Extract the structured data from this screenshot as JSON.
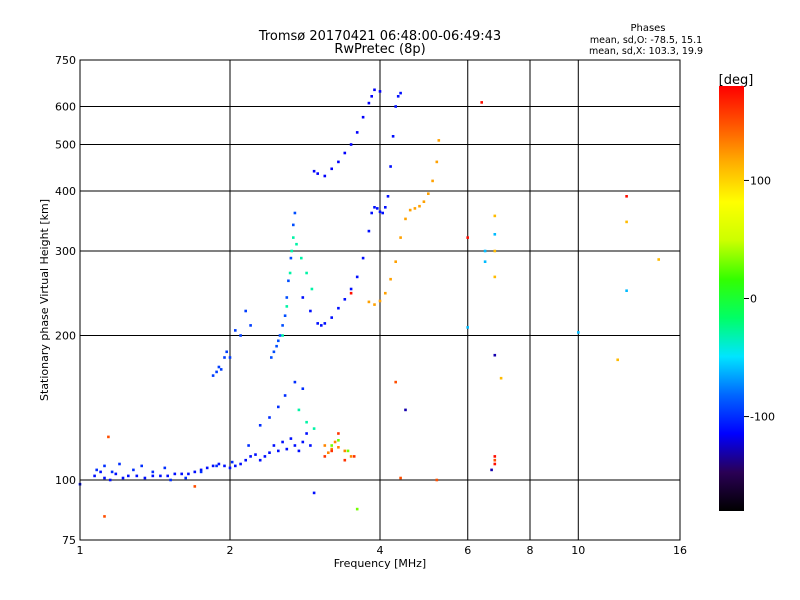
{
  "chart_data": {
    "type": "scatter",
    "title": "Tromsø 20170421 06:48:00-06:49:43",
    "subtitle": "RwPretec (8p)",
    "xlabel": "Frequency [MHz]",
    "ylabel": "Stationary phase Virtual Height [km]",
    "x_scale": "log",
    "y_scale": "log",
    "xlim": [
      1,
      16
    ],
    "ylim": [
      75,
      750
    ],
    "x_ticks": [
      1,
      2,
      4,
      6,
      8,
      10,
      16
    ],
    "y_ticks": [
      75,
      100,
      200,
      300,
      400,
      500,
      600,
      750
    ],
    "grid": true,
    "phases_box": {
      "title": "Phases",
      "line_o": "mean, sd,O: -78.5, 15.1",
      "line_x": "mean, sd,X: 103.3, 19.9"
    },
    "colorbar": {
      "label": "[deg]",
      "min": -180,
      "max": 180,
      "ticks": [
        -100,
        0,
        100
      ],
      "colors": [
        "#000000",
        "#2a0055",
        "#0000ff",
        "#0066ff",
        "#00e5ff",
        "#00ff66",
        "#33ff00",
        "#ccff00",
        "#ffff00",
        "#ffb000",
        "#ff5500",
        "#ff0000"
      ]
    },
    "series": [
      {
        "phase": -110,
        "points": [
          [
            1.0,
            98
          ],
          [
            1.07,
            102
          ],
          [
            1.1,
            104
          ],
          [
            1.12,
            101
          ],
          [
            1.15,
            100
          ],
          [
            1.18,
            103
          ],
          [
            1.22,
            101
          ],
          [
            1.25,
            102
          ],
          [
            1.3,
            102
          ],
          [
            1.35,
            101
          ],
          [
            1.4,
            102
          ],
          [
            1.45,
            102
          ],
          [
            1.5,
            102
          ],
          [
            1.55,
            103
          ],
          [
            1.6,
            103
          ],
          [
            1.65,
            103
          ],
          [
            1.7,
            104
          ],
          [
            1.75,
            105
          ],
          [
            1.8,
            106
          ],
          [
            1.85,
            107
          ],
          [
            1.9,
            108
          ],
          [
            1.95,
            107
          ],
          [
            2.0,
            106
          ],
          [
            2.05,
            107
          ],
          [
            2.1,
            108
          ],
          [
            2.15,
            110
          ],
          [
            2.2,
            112
          ],
          [
            2.25,
            113
          ],
          [
            2.3,
            110
          ],
          [
            2.35,
            112
          ],
          [
            2.4,
            114
          ],
          [
            2.45,
            118
          ],
          [
            2.5,
            115
          ],
          [
            2.55,
            120
          ],
          [
            2.6,
            116
          ],
          [
            2.65,
            122
          ],
          [
            2.7,
            118
          ],
          [
            2.75,
            115
          ],
          [
            2.8,
            120
          ],
          [
            2.85,
            125
          ],
          [
            2.9,
            118
          ],
          [
            2.95,
            94
          ]
        ]
      },
      {
        "phase": -100,
        "points": [
          [
            1.08,
            105
          ],
          [
            1.12,
            107
          ],
          [
            1.16,
            104
          ],
          [
            1.2,
            108
          ],
          [
            1.28,
            105
          ],
          [
            1.33,
            107
          ],
          [
            1.4,
            104
          ],
          [
            1.48,
            106
          ],
          [
            1.52,
            100
          ],
          [
            1.63,
            101
          ],
          [
            1.75,
            104
          ],
          [
            1.88,
            107
          ],
          [
            2.02,
            109
          ],
          [
            2.18,
            118
          ],
          [
            2.3,
            130
          ],
          [
            2.4,
            135
          ],
          [
            2.5,
            142
          ],
          [
            2.58,
            150
          ],
          [
            2.7,
            160
          ],
          [
            2.8,
            155
          ]
        ]
      },
      {
        "phase": -95,
        "points": [
          [
            1.85,
            165
          ],
          [
            1.88,
            168
          ],
          [
            1.9,
            172
          ],
          [
            1.92,
            170
          ],
          [
            1.95,
            180
          ],
          [
            1.97,
            185
          ],
          [
            2.0,
            180
          ],
          [
            2.05,
            205
          ],
          [
            2.1,
            200
          ],
          [
            2.15,
            225
          ],
          [
            2.2,
            210
          ]
        ]
      },
      {
        "phase": -90,
        "points": [
          [
            2.42,
            180
          ],
          [
            2.45,
            185
          ],
          [
            2.48,
            190
          ],
          [
            2.5,
            195
          ],
          [
            2.52,
            200
          ],
          [
            2.55,
            210
          ],
          [
            2.58,
            220
          ],
          [
            2.6,
            240
          ],
          [
            2.62,
            260
          ],
          [
            2.65,
            290
          ],
          [
            2.68,
            340
          ],
          [
            2.7,
            360
          ]
        ]
      },
      {
        "phase": -30,
        "points": [
          [
            2.55,
            200
          ],
          [
            2.6,
            230
          ],
          [
            2.64,
            270
          ],
          [
            2.66,
            300
          ],
          [
            2.68,
            320
          ],
          [
            2.72,
            310
          ],
          [
            2.78,
            290
          ],
          [
            2.85,
            270
          ],
          [
            2.92,
            250
          ],
          [
            2.75,
            140
          ],
          [
            2.85,
            132
          ],
          [
            2.95,
            128
          ]
        ]
      },
      {
        "phase": -110,
        "points": [
          [
            2.8,
            240
          ],
          [
            2.9,
            225
          ],
          [
            3.0,
            212
          ],
          [
            3.05,
            210
          ],
          [
            3.1,
            212
          ],
          [
            3.2,
            218
          ],
          [
            3.3,
            228
          ],
          [
            3.4,
            238
          ],
          [
            3.5,
            250
          ],
          [
            3.6,
            265
          ],
          [
            3.7,
            290
          ],
          [
            3.8,
            330
          ],
          [
            3.85,
            360
          ],
          [
            3.9,
            370
          ],
          [
            3.95,
            368
          ],
          [
            4.0,
            362
          ],
          [
            4.05,
            360
          ],
          [
            4.1,
            370
          ],
          [
            4.15,
            390
          ],
          [
            4.2,
            450
          ],
          [
            4.25,
            520
          ],
          [
            4.3,
            600
          ],
          [
            4.35,
            630
          ],
          [
            4.4,
            640
          ]
        ]
      },
      {
        "phase": -115,
        "points": [
          [
            2.95,
            440
          ],
          [
            3.0,
            435
          ],
          [
            3.1,
            430
          ],
          [
            3.2,
            445
          ],
          [
            3.3,
            460
          ],
          [
            3.4,
            480
          ],
          [
            3.5,
            500
          ],
          [
            3.6,
            530
          ],
          [
            3.7,
            570
          ],
          [
            3.8,
            610
          ],
          [
            3.85,
            630
          ],
          [
            3.9,
            650
          ],
          [
            4.0,
            645
          ]
        ]
      },
      {
        "phase": 120,
        "points": [
          [
            3.8,
            235
          ],
          [
            3.9,
            232
          ],
          [
            4.0,
            236
          ],
          [
            4.1,
            245
          ],
          [
            4.2,
            262
          ],
          [
            4.3,
            285
          ],
          [
            4.4,
            320
          ],
          [
            4.5,
            350
          ],
          [
            4.6,
            365
          ],
          [
            4.7,
            368
          ],
          [
            4.8,
            372
          ],
          [
            4.9,
            380
          ],
          [
            5.0,
            395
          ],
          [
            5.1,
            420
          ],
          [
            5.2,
            460
          ],
          [
            5.25,
            510
          ]
        ]
      },
      {
        "phase": 130,
        "points": [
          [
            3.1,
            118
          ],
          [
            3.15,
            114
          ],
          [
            3.2,
            116
          ],
          [
            3.25,
            120
          ],
          [
            3.3,
            117
          ],
          [
            3.4,
            115
          ],
          [
            3.5,
            112
          ]
        ]
      },
      {
        "phase": 160,
        "points": [
          [
            3.1,
            112
          ],
          [
            3.2,
            115
          ],
          [
            3.3,
            125
          ],
          [
            3.4,
            110
          ],
          [
            3.55,
            112
          ]
        ]
      },
      {
        "phase": 30,
        "points": [
          [
            3.2,
            118
          ],
          [
            3.3,
            121
          ],
          [
            3.45,
            115
          ],
          [
            3.6,
            87
          ]
        ]
      },
      {
        "phase": 175,
        "points": [
          [
            3.5,
            245
          ],
          [
            6.0,
            320
          ],
          [
            6.8,
            112
          ],
          [
            6.8,
            108
          ],
          [
            6.4,
            612
          ],
          [
            12.5,
            390
          ]
        ]
      },
      {
        "phase": 150,
        "points": [
          [
            1.12,
            84
          ],
          [
            1.14,
            123
          ],
          [
            1.7,
            97
          ],
          [
            4.3,
            160
          ],
          [
            4.4,
            101
          ],
          [
            5.2,
            100
          ],
          [
            6.8,
            110
          ]
        ]
      },
      {
        "phase": 110,
        "points": [
          [
            6.8,
            355
          ],
          [
            6.8,
            300
          ],
          [
            6.8,
            265
          ],
          [
            7.0,
            163
          ],
          [
            12.0,
            178
          ],
          [
            14.5,
            288
          ],
          [
            12.5,
            345
          ]
        ]
      },
      {
        "phase": -60,
        "points": [
          [
            6.0,
            208
          ],
          [
            6.5,
            300
          ],
          [
            6.8,
            325
          ],
          [
            12.5,
            248
          ],
          [
            10.0,
            203
          ],
          [
            6.5,
            285
          ]
        ]
      },
      {
        "phase": -130,
        "points": [
          [
            4.5,
            140
          ],
          [
            6.8,
            182
          ],
          [
            6.7,
            105
          ]
        ]
      }
    ]
  }
}
